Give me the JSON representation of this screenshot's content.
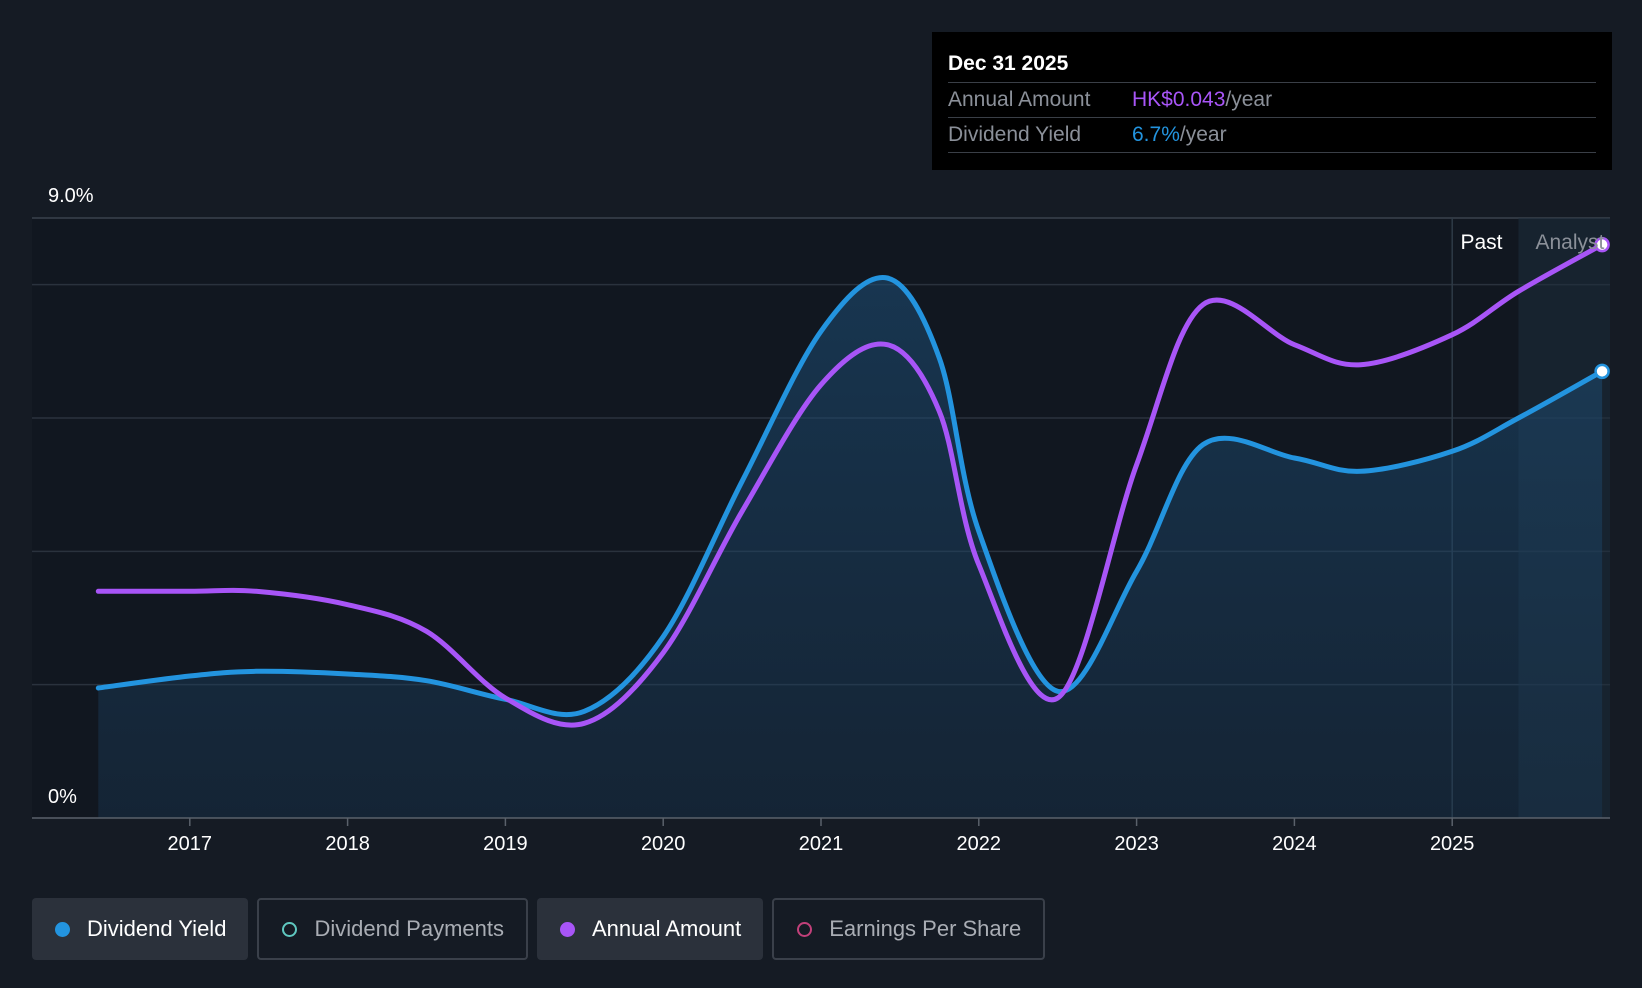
{
  "tooltip": {
    "date": "Dec 31 2025",
    "rows": [
      {
        "label": "Annual Amount",
        "value": "HK$0.043",
        "suffix": "/year",
        "color": "#a855f7"
      },
      {
        "label": "Dividend Yield",
        "value": "6.7%",
        "suffix": "/year",
        "color": "#2394df"
      }
    ]
  },
  "regions": {
    "past": "Past",
    "analyst": "Analyst"
  },
  "legend": [
    {
      "label": "Dividend Yield",
      "color": "#2394df",
      "filled": true,
      "active": true
    },
    {
      "label": "Dividend Payments",
      "color": "#5fc8c0",
      "filled": false,
      "active": false
    },
    {
      "label": "Annual Amount",
      "color": "#a855f7",
      "filled": true,
      "active": true
    },
    {
      "label": "Earnings Per Share",
      "color": "#c2407a",
      "filled": false,
      "active": false
    }
  ],
  "chart_data": {
    "type": "line",
    "x_tick_labels": [
      "2017",
      "2018",
      "2019",
      "2020",
      "2021",
      "2022",
      "2023",
      "2024",
      "2025"
    ],
    "y_tick_labels": [
      "0%",
      "9.0%"
    ],
    "ylim": [
      0,
      9.0
    ],
    "xlim": [
      2016.0,
      2026.0
    ],
    "grid": true,
    "past_analyst_boundary": 2025.42,
    "series": [
      {
        "name": "Dividend Yield",
        "color": "#2394df",
        "area": true,
        "points": [
          [
            2016.42,
            1.95
          ],
          [
            2017.0,
            2.13
          ],
          [
            2017.42,
            2.2
          ],
          [
            2018.0,
            2.16
          ],
          [
            2018.5,
            2.06
          ],
          [
            2019.0,
            1.78
          ],
          [
            2019.5,
            1.6
          ],
          [
            2020.0,
            2.72
          ],
          [
            2020.5,
            5.05
          ],
          [
            2021.0,
            7.3
          ],
          [
            2021.42,
            8.1
          ],
          [
            2021.75,
            6.9
          ],
          [
            2022.0,
            4.3
          ],
          [
            2022.5,
            1.9
          ],
          [
            2023.0,
            3.7
          ],
          [
            2023.42,
            5.6
          ],
          [
            2024.0,
            5.4
          ],
          [
            2024.42,
            5.2
          ],
          [
            2025.0,
            5.5
          ],
          [
            2025.42,
            6.0
          ],
          [
            2025.95,
            6.7
          ]
        ]
      },
      {
        "name": "Annual Amount",
        "color": "#a855f7",
        "area": false,
        "points": [
          [
            2016.42,
            3.4
          ],
          [
            2017.0,
            3.4
          ],
          [
            2017.42,
            3.4
          ],
          [
            2018.0,
            3.2
          ],
          [
            2018.5,
            2.8
          ],
          [
            2019.0,
            1.8
          ],
          [
            2019.5,
            1.42
          ],
          [
            2020.0,
            2.48
          ],
          [
            2020.5,
            4.6
          ],
          [
            2021.0,
            6.5
          ],
          [
            2021.42,
            7.1
          ],
          [
            2021.75,
            6.1
          ],
          [
            2022.0,
            3.8
          ],
          [
            2022.5,
            1.8
          ],
          [
            2023.0,
            5.3
          ],
          [
            2023.42,
            7.7
          ],
          [
            2024.0,
            7.1
          ],
          [
            2024.42,
            6.8
          ],
          [
            2025.0,
            7.25
          ],
          [
            2025.42,
            7.9
          ],
          [
            2025.95,
            8.6
          ]
        ]
      }
    ]
  }
}
